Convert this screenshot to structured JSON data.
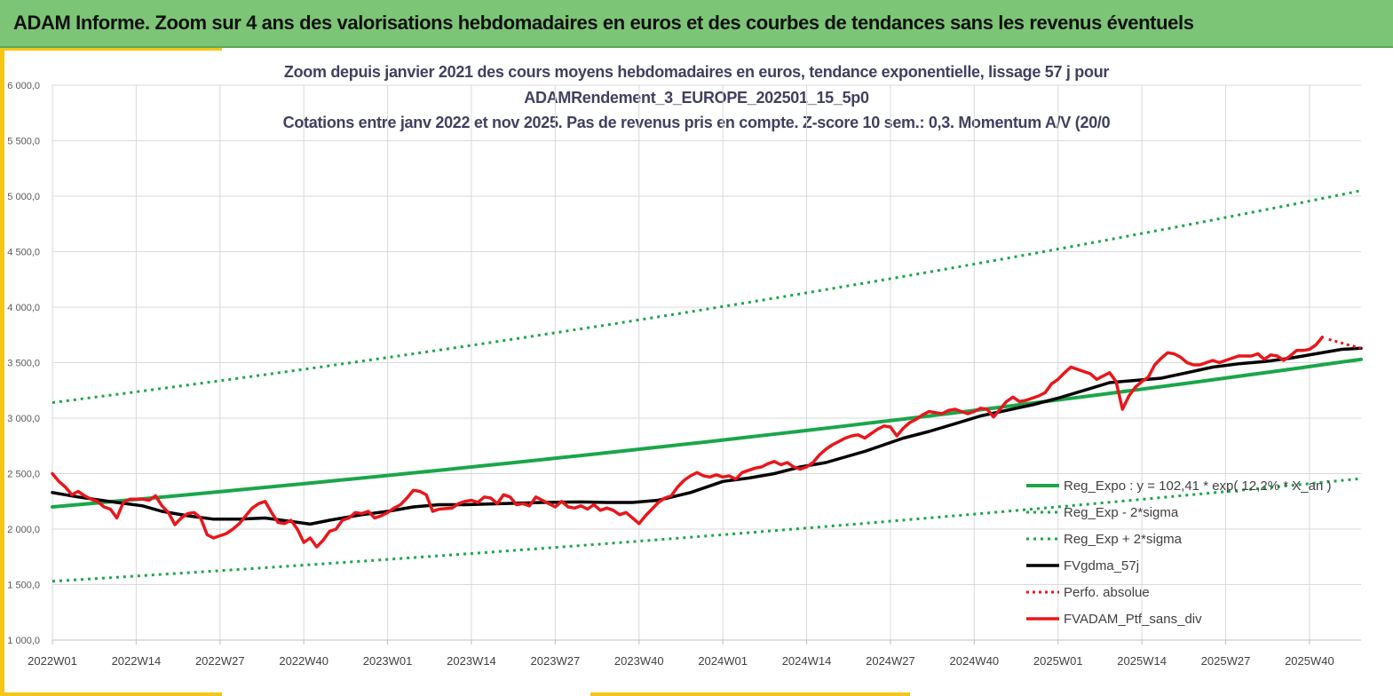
{
  "header": {
    "title": "ADAM Informe. Zoom sur 4 ans des valorisations hebdomadaires en euros et des courbes de tendances sans les revenus éventuels"
  },
  "colors": {
    "banner": "#7cc576",
    "accent": "#f5c518",
    "green": "#1aa64a",
    "red": "#e8161b",
    "black": "#000000",
    "grid": "#d9d9d9"
  },
  "chart_data": {
    "type": "line",
    "title_lines": [
      "Zoom depuis janvier 2021 des cours moyens hebdomadaires  en euros, tendance exponentielle, lissage 57 j pour",
      "ADAMRendement_3_EUROPE_202501_15_5p0",
      "Cotations  entre janv 2022 et nov 2025. Pas de revenus pris en compte. Z-score 10 sem.: 0,3. Momentum A/V (20/0"
    ],
    "x_ticks": [
      "2022W01",
      "2022W14",
      "2022W27",
      "2022W40",
      "2023W01",
      "2023W14",
      "2023W27",
      "2023W40",
      "2024W01",
      "2024W14",
      "2024W27",
      "2024W40",
      "2025W01",
      "2025W14",
      "2025W27",
      "2025W40"
    ],
    "x_tick_weeks": [
      0,
      13,
      26,
      39,
      52,
      65,
      78,
      91,
      104,
      117,
      130,
      143,
      156,
      169,
      182,
      195
    ],
    "x_range_weeks": [
      0,
      203
    ],
    "y_ticks": [
      1000,
      1500,
      2000,
      2500,
      3000,
      3500,
      4000,
      4500,
      5000,
      5500,
      6000
    ],
    "y_tick_labels": [
      "1 000,0",
      "1 500,0",
      "2 000,0",
      "2 500,0",
      "3 000,0",
      "3 500,0",
      "4 000,0",
      "4 500,0",
      "5 000,0",
      "5 500,0",
      "6 000,0"
    ],
    "ylim": [
      1000,
      6000
    ],
    "grid": true,
    "legend_position": "bottom-right",
    "series": [
      {
        "name": "Reg_Expo : y = 102,41 * exp( 12,2% * X_an )",
        "style": "solid-green",
        "start": 2200,
        "end": 3530
      },
      {
        "name": "Reg_Exp - 2*sigma",
        "style": "dotted-green",
        "start": 1530,
        "end": 2455
      },
      {
        "name": "Reg_Exp + 2*sigma",
        "style": "dotted-green",
        "start": 3140,
        "end": 5050
      },
      {
        "name": "FVgdma_57j",
        "style": "solid-black",
        "points": [
          [
            0,
            2330
          ],
          [
            4,
            2290
          ],
          [
            10,
            2240
          ],
          [
            14,
            2210
          ],
          [
            17,
            2160
          ],
          [
            21,
            2120
          ],
          [
            25,
            2090
          ],
          [
            29,
            2090
          ],
          [
            33,
            2100
          ],
          [
            37,
            2070
          ],
          [
            40,
            2045
          ],
          [
            43,
            2080
          ],
          [
            48,
            2130
          ],
          [
            52,
            2160
          ],
          [
            56,
            2200
          ],
          [
            60,
            2220
          ],
          [
            64,
            2220
          ],
          [
            70,
            2230
          ],
          [
            76,
            2240
          ],
          [
            82,
            2245
          ],
          [
            86,
            2240
          ],
          [
            90,
            2240
          ],
          [
            94,
            2260
          ],
          [
            99,
            2330
          ],
          [
            104,
            2430
          ],
          [
            108,
            2460
          ],
          [
            112,
            2500
          ],
          [
            116,
            2560
          ],
          [
            120,
            2600
          ],
          [
            126,
            2700
          ],
          [
            132,
            2820
          ],
          [
            136,
            2880
          ],
          [
            140,
            2950
          ],
          [
            144,
            3020
          ],
          [
            148,
            3070
          ],
          [
            152,
            3120
          ],
          [
            156,
            3180
          ],
          [
            160,
            3250
          ],
          [
            164,
            3320
          ],
          [
            168,
            3340
          ],
          [
            172,
            3360
          ],
          [
            176,
            3410
          ],
          [
            180,
            3460
          ],
          [
            184,
            3490
          ],
          [
            188,
            3510
          ],
          [
            192,
            3540
          ],
          [
            196,
            3580
          ],
          [
            200,
            3620
          ],
          [
            203,
            3630
          ]
        ]
      },
      {
        "name": "Perfo. absolue",
        "style": "dotted-red",
        "points": [
          [
            198,
            3710
          ],
          [
            201,
            3660
          ],
          [
            203,
            3630
          ]
        ]
      },
      {
        "name": "FVADAM_Ptf_sans_div",
        "style": "solid-red",
        "points": [
          [
            0,
            2500
          ],
          [
            1,
            2430
          ],
          [
            2,
            2380
          ],
          [
            3,
            2310
          ],
          [
            4,
            2340
          ],
          [
            5,
            2300
          ],
          [
            6,
            2270
          ],
          [
            7,
            2250
          ],
          [
            8,
            2200
          ],
          [
            9,
            2180
          ],
          [
            10,
            2100
          ],
          [
            11,
            2240
          ],
          [
            12,
            2270
          ],
          [
            14,
            2270
          ],
          [
            15,
            2260
          ],
          [
            16,
            2300
          ],
          [
            17,
            2210
          ],
          [
            18,
            2150
          ],
          [
            19,
            2040
          ],
          [
            20,
            2100
          ],
          [
            21,
            2140
          ],
          [
            22,
            2150
          ],
          [
            23,
            2100
          ],
          [
            24,
            1950
          ],
          [
            25,
            1920
          ],
          [
            26,
            1940
          ],
          [
            27,
            1960
          ],
          [
            28,
            2000
          ],
          [
            29,
            2050
          ],
          [
            30,
            2120
          ],
          [
            31,
            2190
          ],
          [
            32,
            2230
          ],
          [
            33,
            2250
          ],
          [
            34,
            2150
          ],
          [
            35,
            2060
          ],
          [
            36,
            2050
          ],
          [
            37,
            2080
          ],
          [
            38,
            2000
          ],
          [
            39,
            1880
          ],
          [
            40,
            1920
          ],
          [
            41,
            1840
          ],
          [
            42,
            1900
          ],
          [
            43,
            1980
          ],
          [
            44,
            2000
          ],
          [
            45,
            2080
          ],
          [
            46,
            2100
          ],
          [
            47,
            2150
          ],
          [
            48,
            2140
          ],
          [
            49,
            2160
          ],
          [
            50,
            2100
          ],
          [
            51,
            2120
          ],
          [
            52,
            2150
          ],
          [
            53,
            2190
          ],
          [
            54,
            2220
          ],
          [
            55,
            2280
          ],
          [
            56,
            2350
          ],
          [
            57,
            2340
          ],
          [
            58,
            2310
          ],
          [
            59,
            2160
          ],
          [
            60,
            2180
          ],
          [
            62,
            2190
          ],
          [
            63,
            2230
          ],
          [
            64,
            2250
          ],
          [
            65,
            2260
          ],
          [
            66,
            2240
          ],
          [
            67,
            2290
          ],
          [
            68,
            2280
          ],
          [
            69,
            2230
          ],
          [
            70,
            2310
          ],
          [
            71,
            2290
          ],
          [
            72,
            2220
          ],
          [
            73,
            2230
          ],
          [
            74,
            2210
          ],
          [
            75,
            2290
          ],
          [
            76,
            2260
          ],
          [
            77,
            2230
          ],
          [
            78,
            2200
          ],
          [
            79,
            2250
          ],
          [
            80,
            2200
          ],
          [
            81,
            2190
          ],
          [
            82,
            2210
          ],
          [
            83,
            2180
          ],
          [
            84,
            2220
          ],
          [
            85,
            2170
          ],
          [
            86,
            2190
          ],
          [
            87,
            2170
          ],
          [
            88,
            2130
          ],
          [
            89,
            2150
          ],
          [
            90,
            2100
          ],
          [
            91,
            2050
          ],
          [
            92,
            2120
          ],
          [
            93,
            2180
          ],
          [
            94,
            2240
          ],
          [
            95,
            2280
          ],
          [
            96,
            2300
          ],
          [
            97,
            2380
          ],
          [
            98,
            2440
          ],
          [
            99,
            2480
          ],
          [
            100,
            2510
          ],
          [
            101,
            2480
          ],
          [
            102,
            2470
          ],
          [
            103,
            2490
          ],
          [
            104,
            2470
          ],
          [
            105,
            2480
          ],
          [
            106,
            2450
          ],
          [
            107,
            2510
          ],
          [
            108,
            2530
          ],
          [
            109,
            2550
          ],
          [
            110,
            2560
          ],
          [
            111,
            2590
          ],
          [
            112,
            2610
          ],
          [
            113,
            2580
          ],
          [
            114,
            2600
          ],
          [
            115,
            2560
          ],
          [
            116,
            2540
          ],
          [
            117,
            2560
          ],
          [
            118,
            2600
          ],
          [
            119,
            2670
          ],
          [
            120,
            2720
          ],
          [
            121,
            2760
          ],
          [
            122,
            2790
          ],
          [
            123,
            2820
          ],
          [
            124,
            2840
          ],
          [
            125,
            2850
          ],
          [
            126,
            2820
          ],
          [
            127,
            2860
          ],
          [
            128,
            2900
          ],
          [
            129,
            2930
          ],
          [
            130,
            2920
          ],
          [
            131,
            2840
          ],
          [
            132,
            2910
          ],
          [
            133,
            2960
          ],
          [
            134,
            2990
          ],
          [
            135,
            3030
          ],
          [
            136,
            3060
          ],
          [
            137,
            3050
          ],
          [
            138,
            3040
          ],
          [
            139,
            3070
          ],
          [
            140,
            3080
          ],
          [
            141,
            3060
          ],
          [
            142,
            3040
          ],
          [
            143,
            3060
          ],
          [
            144,
            3090
          ],
          [
            145,
            3080
          ],
          [
            146,
            3010
          ],
          [
            147,
            3080
          ],
          [
            148,
            3150
          ],
          [
            149,
            3190
          ],
          [
            150,
            3150
          ],
          [
            151,
            3160
          ],
          [
            152,
            3180
          ],
          [
            153,
            3200
          ],
          [
            154,
            3230
          ],
          [
            155,
            3310
          ],
          [
            156,
            3350
          ],
          [
            157,
            3410
          ],
          [
            158,
            3460
          ],
          [
            159,
            3440
          ],
          [
            160,
            3420
          ],
          [
            161,
            3400
          ],
          [
            162,
            3350
          ],
          [
            163,
            3380
          ],
          [
            164,
            3410
          ],
          [
            165,
            3330
          ],
          [
            166,
            3080
          ],
          [
            167,
            3200
          ],
          [
            168,
            3280
          ],
          [
            169,
            3330
          ],
          [
            170,
            3370
          ],
          [
            171,
            3480
          ],
          [
            172,
            3540
          ],
          [
            173,
            3590
          ],
          [
            174,
            3580
          ],
          [
            175,
            3550
          ],
          [
            176,
            3500
          ],
          [
            177,
            3480
          ],
          [
            178,
            3480
          ],
          [
            179,
            3500
          ],
          [
            180,
            3520
          ],
          [
            181,
            3500
          ],
          [
            182,
            3520
          ],
          [
            183,
            3540
          ],
          [
            184,
            3560
          ],
          [
            185,
            3560
          ],
          [
            186,
            3560
          ],
          [
            187,
            3580
          ],
          [
            188,
            3530
          ],
          [
            189,
            3570
          ],
          [
            190,
            3560
          ],
          [
            191,
            3520
          ],
          [
            192,
            3560
          ],
          [
            193,
            3610
          ],
          [
            194,
            3610
          ],
          [
            195,
            3620
          ],
          [
            196,
            3660
          ],
          [
            197,
            3730
          ]
        ]
      }
    ]
  }
}
